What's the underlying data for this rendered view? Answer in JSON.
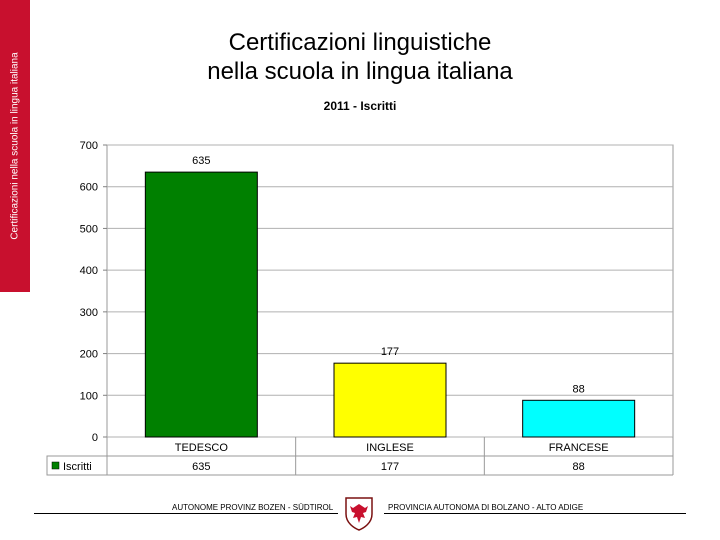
{
  "sidebar_label": "Certificazioni nella scuola in lingua italiana",
  "title_line1": "Certificazioni linguistiche",
  "title_line2": "nella scuola in lingua italiana",
  "footer": {
    "left": "AUTONOME PROVINZ BOZEN - SÜDTIROL",
    "right": "PROVINCIA AUTONOMA DI BOLZANO - ALTO ADIGE"
  },
  "colors": {
    "sidebar": "#c8102e",
    "bar_tedesco": "#008000",
    "bar_inglese": "#ffff00",
    "bar_francese": "#00ffff"
  },
  "chart_data": {
    "type": "bar",
    "title": "2011 - Iscritti",
    "categories": [
      "TEDESCO",
      "INGLESE",
      "FRANCESE"
    ],
    "series": [
      {
        "name": "Iscritti",
        "values": [
          635,
          177,
          88
        ]
      }
    ],
    "bar_colors": [
      "#008000",
      "#ffff00",
      "#00ffff"
    ],
    "ylim": [
      0,
      700
    ],
    "yticks": [
      0,
      100,
      200,
      300,
      400,
      500,
      600,
      700
    ],
    "xlabel": "",
    "ylabel": "",
    "grid": true,
    "data_table": true
  }
}
